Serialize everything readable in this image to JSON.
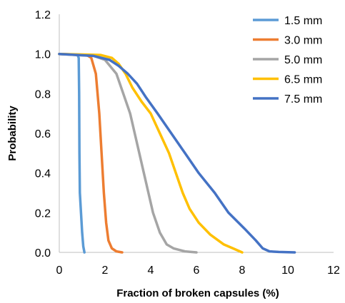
{
  "chart_data": {
    "type": "line",
    "title": "",
    "xlabel": "Fraction of broken capsules (%)",
    "ylabel": "Probability",
    "xlim": [
      0,
      12
    ],
    "ylim": [
      0,
      1.2
    ],
    "xticks": [
      0,
      2,
      4,
      6,
      8,
      10,
      12
    ],
    "yticks": [
      0.0,
      0.2,
      0.4,
      0.6,
      0.8,
      1.0,
      1.2
    ],
    "ytick_labels": [
      "0.0",
      "0.2",
      "0.4",
      "0.6",
      "0.8",
      "1.0",
      "1.2"
    ],
    "xtick_labels": [
      "0",
      "2",
      "4",
      "6",
      "8",
      "10",
      "12"
    ],
    "grid": false,
    "legend_position": "top-right",
    "series": [
      {
        "name": "1.5 mm",
        "color": "#5B9BD5",
        "points": [
          [
            0,
            1.0
          ],
          [
            0.5,
            0.998
          ],
          [
            0.8,
            0.995
          ],
          [
            0.85,
            0.98
          ],
          [
            0.87,
            0.8
          ],
          [
            0.88,
            0.5
          ],
          [
            0.9,
            0.3
          ],
          [
            0.95,
            0.2
          ],
          [
            1.0,
            0.1
          ],
          [
            1.05,
            0.03
          ],
          [
            1.1,
            0.0
          ]
        ]
      },
      {
        "name": "3.0 mm",
        "color": "#ED7D31",
        "points": [
          [
            0,
            1.0
          ],
          [
            1.2,
            0.995
          ],
          [
            1.4,
            0.98
          ],
          [
            1.6,
            0.9
          ],
          [
            1.75,
            0.7
          ],
          [
            1.85,
            0.5
          ],
          [
            1.95,
            0.3
          ],
          [
            2.05,
            0.15
          ],
          [
            2.15,
            0.06
          ],
          [
            2.3,
            0.02
          ],
          [
            2.5,
            0.005
          ],
          [
            2.75,
            0.0
          ]
        ]
      },
      {
        "name": "5.0 mm",
        "color": "#A5A5A5",
        "points": [
          [
            0,
            1.0
          ],
          [
            1.5,
            0.99
          ],
          [
            2.0,
            0.97
          ],
          [
            2.5,
            0.9
          ],
          [
            2.8,
            0.8
          ],
          [
            3.1,
            0.7
          ],
          [
            3.3,
            0.6
          ],
          [
            3.5,
            0.5
          ],
          [
            3.7,
            0.4
          ],
          [
            3.9,
            0.3
          ],
          [
            4.1,
            0.2
          ],
          [
            4.4,
            0.1
          ],
          [
            4.7,
            0.04
          ],
          [
            5.0,
            0.02
          ],
          [
            5.5,
            0.005
          ],
          [
            6.0,
            0.0
          ]
        ]
      },
      {
        "name": "6.5 mm",
        "color": "#FFC000",
        "points": [
          [
            0,
            1.0
          ],
          [
            1.8,
            0.995
          ],
          [
            2.3,
            0.98
          ],
          [
            2.6,
            0.95
          ],
          [
            2.9,
            0.9
          ],
          [
            3.2,
            0.83
          ],
          [
            3.6,
            0.76
          ],
          [
            4.0,
            0.7
          ],
          [
            4.4,
            0.6
          ],
          [
            4.8,
            0.5
          ],
          [
            5.1,
            0.4
          ],
          [
            5.4,
            0.3
          ],
          [
            5.7,
            0.22
          ],
          [
            6.1,
            0.15
          ],
          [
            6.6,
            0.09
          ],
          [
            7.2,
            0.04
          ],
          [
            7.6,
            0.02
          ],
          [
            8.0,
            0.0
          ]
        ]
      },
      {
        "name": "7.5 mm",
        "color": "#4472C4",
        "points": [
          [
            0,
            1.0
          ],
          [
            1.5,
            0.99
          ],
          [
            2.2,
            0.97
          ],
          [
            2.6,
            0.94
          ],
          [
            3.0,
            0.9
          ],
          [
            3.4,
            0.85
          ],
          [
            3.8,
            0.78
          ],
          [
            4.3,
            0.7
          ],
          [
            4.9,
            0.6
          ],
          [
            5.5,
            0.5
          ],
          [
            6.1,
            0.4
          ],
          [
            6.8,
            0.3
          ],
          [
            7.4,
            0.2
          ],
          [
            8.1,
            0.12
          ],
          [
            8.6,
            0.06
          ],
          [
            8.9,
            0.02
          ],
          [
            9.2,
            0.005
          ],
          [
            9.6,
            0.002
          ],
          [
            10.3,
            0.0
          ]
        ]
      }
    ]
  }
}
